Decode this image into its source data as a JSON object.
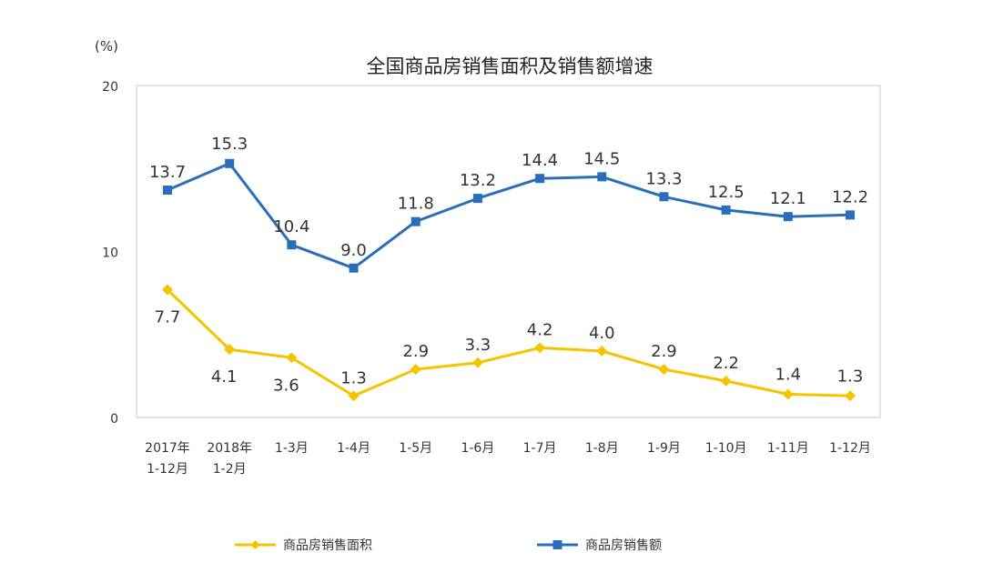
{
  "chart_data": {
    "type": "line",
    "title": "全国商品房销售面积及销售额增速",
    "ylabel": "(%)",
    "xlabel": "",
    "ylim": [
      0,
      20
    ],
    "yticks": [
      "0",
      "10",
      "20"
    ],
    "categories": [
      [
        "2017年",
        "1-12月"
      ],
      [
        "2018年",
        "1-2月"
      ],
      [
        "1-3月"
      ],
      [
        "1-4月"
      ],
      [
        "1-5月"
      ],
      [
        "1-6月"
      ],
      [
        "1-7月"
      ],
      [
        "1-8月"
      ],
      [
        "1-9月"
      ],
      [
        "1-10月"
      ],
      [
        "1-11月"
      ],
      [
        "1-12月"
      ]
    ],
    "series": [
      {
        "name": "商品房销售面积",
        "color": "#f5c400",
        "marker": "diamond",
        "values": [
          7.7,
          4.1,
          3.6,
          1.3,
          2.9,
          3.3,
          4.2,
          4.0,
          2.9,
          2.2,
          1.4,
          1.3
        ],
        "labels": [
          "7.7",
          "4.1",
          "3.6",
          "1.3",
          "2.9",
          "3.3",
          "4.2",
          "4.0",
          "2.9",
          "2.2",
          "1.4",
          "1.3"
        ]
      },
      {
        "name": "商品房销售额",
        "color": "#2a6ebb",
        "marker": "square",
        "values": [
          13.7,
          15.3,
          10.4,
          9.0,
          11.8,
          13.2,
          14.4,
          14.5,
          13.3,
          12.5,
          12.1,
          12.2
        ],
        "labels": [
          "13.7",
          "15.3",
          "10.4",
          "9.0",
          "11.8",
          "13.2",
          "14.4",
          "14.5",
          "13.3",
          "12.5",
          "12.1",
          "12.2"
        ]
      }
    ],
    "grid": false,
    "legend": "bottom"
  }
}
